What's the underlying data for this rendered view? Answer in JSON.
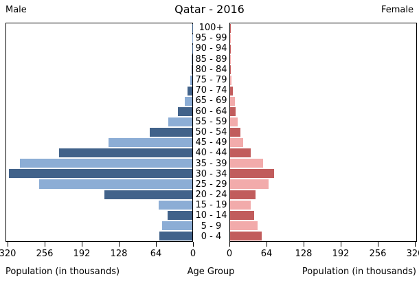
{
  "header": {
    "male_label": "Male",
    "title": "Qatar - 2016",
    "female_label": "Female"
  },
  "footer": {
    "left_axis_label": "Population (in thousands)",
    "center_axis_label": "Age Group",
    "right_axis_label": "Population (in thousands)"
  },
  "colors": {
    "male_dark": "#41628a",
    "male_light": "#8cadd5",
    "female_dark": "#c15c5c",
    "female_light": "#f2abab",
    "axis": "#000000",
    "background": "#ffffff"
  },
  "chart_data": {
    "type": "bar",
    "subtype": "population-pyramid",
    "title": "Qatar - 2016",
    "unit": "thousands",
    "axis_max": 320,
    "ticks_left": [
      320,
      256,
      192,
      128,
      64,
      0
    ],
    "ticks_right": [
      0,
      64,
      128,
      192,
      256,
      320
    ],
    "age_groups": [
      "100+",
      "95 - 99",
      "90 - 94",
      "85 - 89",
      "80 - 84",
      "75 - 79",
      "70 - 74",
      "65 - 69",
      "60 - 64",
      "55 - 59",
      "50 - 54",
      "45 - 49",
      "40 - 44",
      "35 - 39",
      "30 - 34",
      "25 - 29",
      "20 - 24",
      "15 - 19",
      "10 - 14",
      "5 - 9",
      "0 - 4"
    ],
    "series": [
      {
        "name": "Male",
        "side": "left",
        "values": [
          0.1,
          0.2,
          0.4,
          0.7,
          1.2,
          3,
          8,
          13,
          25,
          41,
          74,
          145,
          230,
          298,
          316,
          264,
          152,
          58,
          43,
          52,
          57
        ]
      },
      {
        "name": "Female",
        "side": "right",
        "values": [
          0.1,
          0.2,
          0.3,
          0.5,
          1.0,
          2.5,
          4.5,
          8,
          10,
          12.5,
          17.5,
          23,
          36,
          57,
          76,
          66,
          44,
          35,
          41,
          47,
          54
        ]
      }
    ],
    "legend": "none",
    "grid": false
  }
}
